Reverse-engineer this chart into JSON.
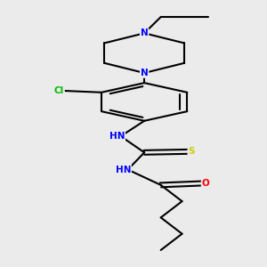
{
  "background_color": "#ebebeb",
  "bond_color": "#000000",
  "atom_colors": {
    "N": "#0000ff",
    "O": "#ff0000",
    "S": "#cccc00",
    "Cl": "#00bb00",
    "C": "#000000",
    "H": "#888888"
  },
  "figsize": [
    3.0,
    3.0
  ],
  "dpi": 100
}
